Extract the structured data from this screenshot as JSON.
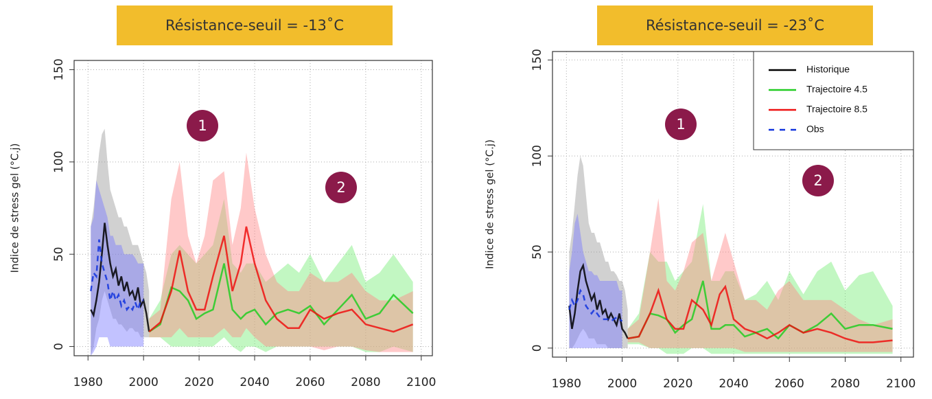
{
  "chart_data": [
    {
      "type": "line",
      "title": "Résistance-seuil = -13˚C",
      "ylabel": "Indice de stress gel (°C.j)",
      "xlim": [
        1975,
        2104
      ],
      "ylim": [
        -5,
        155
      ],
      "xticks": [
        1980,
        2000,
        2020,
        2040,
        2060,
        2080,
        2100
      ],
      "yticks": [
        0,
        50,
        100,
        150
      ],
      "grid": true,
      "legend": false,
      "annotations": [
        "1",
        "2"
      ],
      "series": [
        {
          "name": "Historique",
          "color": "#000000",
          "band_color": "#9a9a9a",
          "x": [
            1981,
            1982,
            1983,
            1984,
            1985,
            1986,
            1987,
            1988,
            1989,
            1990,
            1991,
            1992,
            1993,
            1994,
            1995,
            1996,
            1997,
            1998,
            1999,
            2000,
            2001,
            2002
          ],
          "values": [
            20,
            17,
            25,
            35,
            50,
            67,
            55,
            45,
            38,
            42,
            33,
            38,
            30,
            35,
            28,
            30,
            25,
            32,
            22,
            25,
            18,
            8
          ],
          "lower": [
            -5,
            0,
            10,
            15,
            25,
            30,
            25,
            20,
            15,
            15,
            12,
            12,
            10,
            8,
            10,
            10,
            8,
            8,
            5,
            5,
            5,
            5
          ],
          "upper": [
            65,
            75,
            90,
            105,
            115,
            118,
            100,
            85,
            80,
            75,
            70,
            70,
            65,
            65,
            60,
            55,
            55,
            55,
            50,
            45,
            40,
            30
          ]
        },
        {
          "name": "Trajectoire 4.5",
          "color": "#22cc22",
          "band_color": "#77ee77",
          "x": [
            2002,
            2006,
            2010,
            2013,
            2016,
            2019,
            2022,
            2025,
            2029,
            2032,
            2035,
            2037,
            2040,
            2044,
            2048,
            2052,
            2056,
            2060,
            2065,
            2070,
            2075,
            2080,
            2085,
            2090,
            2097
          ],
          "values": [
            8,
            12,
            32,
            30,
            25,
            15,
            18,
            20,
            45,
            20,
            15,
            18,
            20,
            12,
            18,
            20,
            18,
            22,
            12,
            20,
            28,
            15,
            18,
            28,
            18
          ],
          "lower": [
            5,
            5,
            0,
            0,
            0,
            0,
            0,
            0,
            5,
            0,
            -3,
            0,
            0,
            -3,
            0,
            0,
            0,
            0,
            0,
            0,
            0,
            -3,
            -3,
            0,
            -3
          ],
          "upper": [
            15,
            25,
            50,
            55,
            50,
            45,
            50,
            55,
            80,
            45,
            40,
            45,
            45,
            35,
            40,
            45,
            40,
            50,
            35,
            45,
            55,
            35,
            40,
            50,
            35
          ]
        },
        {
          "name": "Trajectoire 8.5",
          "color": "#ee1111",
          "band_color": "#ff8888",
          "x": [
            2002,
            2006,
            2010,
            2013,
            2016,
            2019,
            2022,
            2025,
            2029,
            2032,
            2035,
            2037,
            2040,
            2044,
            2048,
            2052,
            2056,
            2060,
            2065,
            2070,
            2075,
            2080,
            2085,
            2090,
            2097
          ],
          "values": [
            8,
            13,
            30,
            52,
            30,
            20,
            20,
            38,
            60,
            30,
            45,
            65,
            45,
            25,
            15,
            10,
            10,
            20,
            15,
            18,
            20,
            12,
            10,
            8,
            12
          ],
          "lower": [
            5,
            5,
            5,
            10,
            5,
            5,
            5,
            5,
            10,
            5,
            5,
            10,
            5,
            0,
            0,
            0,
            0,
            0,
            -2,
            0,
            0,
            -2,
            -3,
            -3,
            -3
          ],
          "upper": [
            15,
            20,
            80,
            100,
            60,
            45,
            60,
            90,
            95,
            55,
            75,
            105,
            75,
            50,
            35,
            30,
            30,
            40,
            35,
            35,
            40,
            30,
            25,
            25,
            30
          ]
        },
        {
          "name": "Obs",
          "color": "#1133dd",
          "band_color": "#7777ff",
          "dashed": true,
          "x": [
            1981,
            1982,
            1983,
            1984,
            1985,
            1986,
            1987,
            1988,
            1989,
            1990,
            1991,
            1992,
            1993,
            1994,
            1995,
            1996,
            1997,
            1998,
            1999,
            2000
          ],
          "values": [
            30,
            40,
            38,
            58,
            45,
            40,
            35,
            25,
            30,
            25,
            28,
            22,
            25,
            20,
            22,
            20,
            24,
            20,
            25,
            25
          ],
          "lower": [
            -5,
            -3,
            0,
            5,
            5,
            5,
            5,
            0,
            0,
            0,
            0,
            0,
            0,
            0,
            0,
            0,
            0,
            0,
            0,
            0
          ],
          "upper": [
            65,
            70,
            90,
            85,
            80,
            75,
            70,
            60,
            60,
            55,
            55,
            55,
            50,
            50,
            50,
            50,
            48,
            45,
            45,
            45
          ]
        }
      ]
    },
    {
      "type": "line",
      "title": "Résistance-seuil = -23˚C",
      "ylabel": "Indice de stress gel (°C.j)",
      "xlim": [
        1975,
        2104.5
      ],
      "ylim": [
        -4.7,
        154.4
      ],
      "xticks": [
        1980,
        2000,
        2020,
        2040,
        2060,
        2080,
        2100
      ],
      "yticks": [
        0,
        50,
        100,
        150
      ],
      "grid": true,
      "legend": true,
      "annotations": [
        "1",
        "2"
      ],
      "series": [
        {
          "name": "Historique",
          "color": "#000000",
          "band_color": "#9a9a9a",
          "x": [
            1981,
            1982,
            1983,
            1984,
            1985,
            1986,
            1987,
            1988,
            1989,
            1990,
            1991,
            1992,
            1993,
            1994,
            1995,
            1996,
            1997,
            1998,
            1999,
            2000,
            2001,
            2002
          ],
          "values": [
            22,
            10,
            18,
            30,
            40,
            43,
            35,
            30,
            25,
            28,
            20,
            25,
            18,
            20,
            15,
            18,
            15,
            12,
            18,
            10,
            8,
            5
          ],
          "lower": [
            0,
            0,
            2,
            5,
            8,
            10,
            8,
            5,
            5,
            5,
            2,
            2,
            2,
            2,
            0,
            0,
            0,
            0,
            0,
            0,
            0,
            0
          ],
          "upper": [
            50,
            60,
            75,
            90,
            100,
            95,
            80,
            65,
            60,
            60,
            55,
            55,
            50,
            45,
            45,
            40,
            40,
            38,
            35,
            35,
            30,
            20
          ]
        },
        {
          "name": "Trajectoire 4.5",
          "color": "#22cc22",
          "band_color": "#77ee77",
          "x": [
            2002,
            2006,
            2010,
            2013,
            2016,
            2019,
            2022,
            2025,
            2029,
            2032,
            2035,
            2037,
            2040,
            2044,
            2048,
            2052,
            2056,
            2060,
            2065,
            2070,
            2075,
            2080,
            2085,
            2090,
            2097
          ],
          "values": [
            5,
            6,
            18,
            17,
            15,
            8,
            12,
            15,
            35,
            10,
            10,
            12,
            12,
            6,
            8,
            10,
            5,
            12,
            8,
            12,
            18,
            10,
            12,
            12,
            10
          ],
          "lower": [
            2,
            2,
            0,
            0,
            -3,
            -3,
            -3,
            0,
            0,
            -3,
            -3,
            -3,
            -3,
            -3,
            -3,
            -3,
            -3,
            -3,
            -3,
            -3,
            -3,
            -3,
            -3,
            -3,
            -3
          ],
          "upper": [
            10,
            18,
            50,
            45,
            45,
            35,
            40,
            45,
            75,
            35,
            35,
            40,
            40,
            25,
            28,
            35,
            25,
            40,
            28,
            40,
            45,
            30,
            38,
            40,
            22
          ]
        },
        {
          "name": "Trajectoire 8.5",
          "color": "#ee1111",
          "band_color": "#ff8888",
          "x": [
            2002,
            2006,
            2010,
            2013,
            2016,
            2019,
            2022,
            2025,
            2029,
            2032,
            2035,
            2037,
            2040,
            2044,
            2048,
            2052,
            2056,
            2060,
            2065,
            2070,
            2075,
            2080,
            2085,
            2090,
            2097
          ],
          "values": [
            5,
            6,
            18,
            30,
            15,
            10,
            10,
            25,
            20,
            12,
            28,
            32,
            15,
            10,
            8,
            5,
            8,
            12,
            8,
            10,
            8,
            5,
            3,
            3,
            4
          ],
          "lower": [
            3,
            3,
            0,
            0,
            0,
            0,
            0,
            0,
            0,
            0,
            0,
            0,
            0,
            -2,
            -2,
            -2,
            -2,
            -2,
            -2,
            -2,
            -2,
            -2,
            -2,
            -2,
            -2
          ],
          "upper": [
            10,
            15,
            50,
            78,
            35,
            30,
            40,
            55,
            60,
            35,
            50,
            60,
            45,
            25,
            25,
            20,
            30,
            35,
            25,
            25,
            25,
            20,
            15,
            12,
            15
          ]
        },
        {
          "name": "Obs",
          "color": "#1133dd",
          "band_color": "#7777ff",
          "dashed": true,
          "x": [
            1981,
            1982,
            1983,
            1984,
            1985,
            1986,
            1987,
            1988,
            1989,
            1990,
            1991,
            1992,
            1993,
            1994,
            1995,
            1996,
            1997,
            1998,
            1999,
            2000
          ],
          "values": [
            20,
            25,
            22,
            25,
            30,
            28,
            22,
            20,
            18,
            20,
            18,
            16,
            15,
            15,
            15,
            14,
            15,
            16,
            15,
            14
          ],
          "lower": [
            0,
            0,
            0,
            0,
            0,
            0,
            0,
            0,
            0,
            0,
            0,
            0,
            0,
            0,
            0,
            0,
            0,
            0,
            0,
            0
          ],
          "upper": [
            40,
            50,
            65,
            70,
            60,
            50,
            45,
            40,
            40,
            38,
            38,
            35,
            35,
            35,
            35,
            35,
            35,
            35,
            30,
            30
          ]
        }
      ]
    }
  ]
}
